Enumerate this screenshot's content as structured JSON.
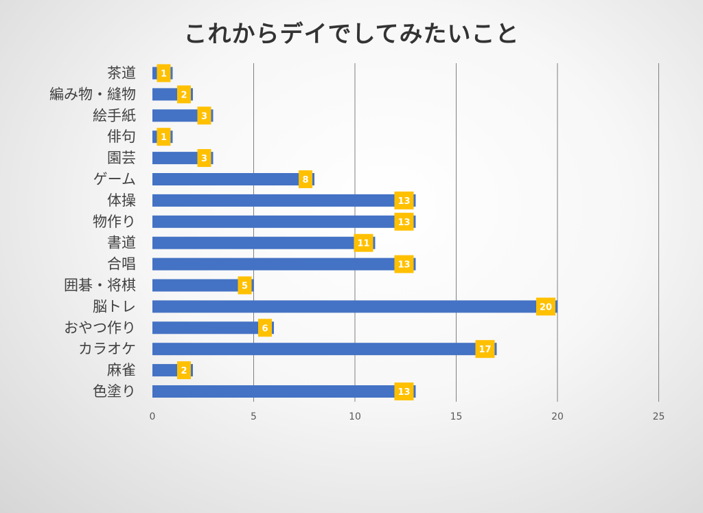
{
  "chart_data": {
    "type": "bar",
    "orientation": "horizontal",
    "title": "これからデイでしてみたいこと",
    "categories": [
      "茶道",
      "編み物・縫物",
      "絵手紙",
      "俳句",
      "園芸",
      "ゲーム",
      "体操",
      "物作り",
      "書道",
      "合唱",
      "囲碁・将棋",
      "脳トレ",
      "おやつ作り",
      "カラオケ",
      "麻雀",
      "色塗り"
    ],
    "values": [
      1,
      2,
      3,
      1,
      3,
      8,
      13,
      13,
      11,
      13,
      5,
      20,
      6,
      17,
      2,
      13
    ],
    "xlim": [
      0,
      25
    ],
    "x_ticks": [
      "0",
      "5",
      "10",
      "15",
      "20",
      "25"
    ],
    "grid": "vertical",
    "legend": "none",
    "colors": {
      "bar": "#4472C4",
      "label_bg": "#FFC000",
      "label_text": "#FFFFFF",
      "gridline": "#7F7F7F"
    }
  }
}
